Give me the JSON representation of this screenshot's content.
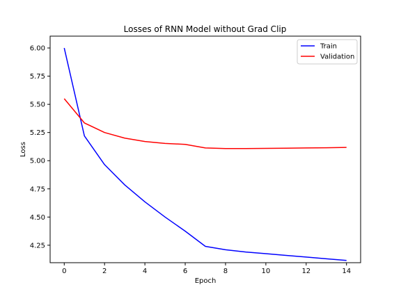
{
  "chart_data": {
    "type": "line",
    "title": "Losses of RNN Model without Grad Clip",
    "xlabel": "Epoch",
    "ylabel": "Loss",
    "xlim": [
      -0.7,
      14.7
    ],
    "ylim": [
      4.095,
      6.105
    ],
    "x_ticks": [
      0,
      2,
      4,
      6,
      8,
      10,
      12,
      14
    ],
    "x_tick_labels": [
      "0",
      "2",
      "4",
      "6",
      "8",
      "10",
      "12",
      "14"
    ],
    "y_ticks": [
      4.25,
      4.5,
      4.75,
      5.0,
      5.25,
      5.5,
      5.75,
      6.0
    ],
    "y_tick_labels": [
      "4.25",
      "4.50",
      "4.75",
      "5.00",
      "5.25",
      "5.50",
      "5.75",
      "6.00"
    ],
    "grid": false,
    "legend_position": "top-right",
    "x": [
      0,
      1,
      2,
      3,
      4,
      5,
      6,
      7,
      8,
      9,
      10,
      11,
      12,
      13,
      14
    ],
    "series": [
      {
        "name": "Train",
        "color": "#0000ff",
        "values": [
          6.0,
          5.22,
          4.965,
          4.785,
          4.635,
          4.5,
          4.375,
          4.24,
          4.21,
          4.19,
          4.175,
          4.16,
          4.145,
          4.13,
          4.115
        ]
      },
      {
        "name": "Validation",
        "color": "#ff0000",
        "values": [
          5.55,
          5.335,
          5.25,
          5.2,
          5.17,
          5.153,
          5.145,
          5.113,
          5.108,
          5.108,
          5.109,
          5.111,
          5.113,
          5.115,
          5.118
        ]
      }
    ]
  }
}
